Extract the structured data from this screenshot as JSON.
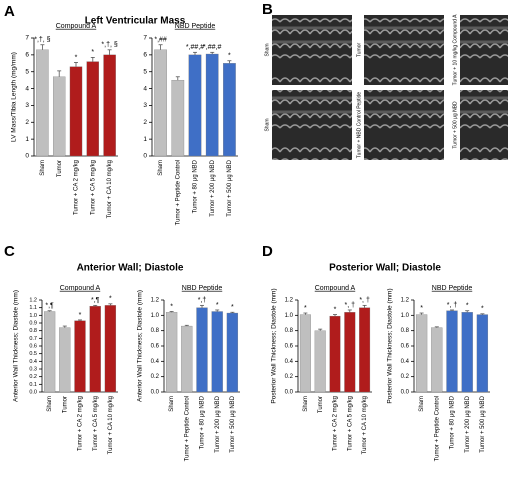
{
  "panels": [
    {
      "letter": "A",
      "title": "Left Ventricular Mass"
    },
    {
      "letter": "B"
    },
    {
      "letter": "C",
      "title": "Anterior Wall; Diastole"
    },
    {
      "letter": "D",
      "title": "Posterior Wall; Diastole"
    }
  ],
  "panel_b": {
    "labels": [
      "Sham",
      "Tumor",
      "Tumor + 10 mg/kg Compound A",
      "Sham",
      "Tumor + NBD Control Peptide",
      "Tumor + 500 μg NBD"
    ]
  },
  "chart_data": [
    {
      "type": "bar",
      "subtitle": "Compound A",
      "ylabel": "LV Mass/Tibia Length (mg/mm)",
      "categories": [
        "Sham",
        "Tumor",
        "Tumor + CA 2 mg/kg",
        "Tumor + CA 5 mg/kg",
        "Tumor + CA 10 mg/kg"
      ],
      "values": [
        6.3,
        4.7,
        5.3,
        5.6,
        6.0
      ],
      "errors": [
        0.3,
        0.35,
        0.25,
        0.25,
        0.3
      ],
      "colors": [
        "#bfbfbf",
        "#bfbfbf",
        "#b01c1c",
        "#b01c1c",
        "#b01c1c"
      ],
      "annotations": [
        "*,†, §",
        null,
        "*",
        "*",
        "*,†, §"
      ],
      "ylim": [
        0,
        7
      ],
      "yticks": [
        0,
        1,
        2,
        3,
        4,
        5,
        6,
        7
      ]
    },
    {
      "type": "bar",
      "subtitle": "NBD Peptide",
      "ylabel": "",
      "categories": [
        "Sham",
        "Tumor + Peptide Control",
        "Tumor + 80 μg NBD",
        "Tumor + 200 μg NBD",
        "Tumor + 500 μg NBD"
      ],
      "values": [
        6.3,
        4.5,
        6.0,
        6.05,
        5.5
      ],
      "errors": [
        0.3,
        0.2,
        0.15,
        0.1,
        0.15
      ],
      "colors": [
        "#bfbfbf",
        "#bfbfbf",
        "#3f6fc6",
        "#3f6fc6",
        "#3f6fc6"
      ],
      "annotations": [
        "*,##",
        null,
        "*,##,#",
        "*,##,#",
        "*"
      ],
      "ylim": [
        0,
        7
      ],
      "yticks": [
        0,
        1,
        2,
        3,
        4,
        5,
        6,
        7
      ]
    },
    {
      "type": "bar",
      "subtitle": "Compound A",
      "ylabel": "Anterior Wall Thickness; Diastole (mm)",
      "categories": [
        "Sham",
        "Tumor",
        "Tumor + CA 2 mg/kg",
        "Tumor + CA 5 mg/kg",
        "Tumor + CA 10 mg/kg"
      ],
      "values": [
        1.05,
        0.84,
        0.93,
        1.12,
        1.13
      ],
      "errors": [
        0.01,
        0.02,
        0.01,
        0.01,
        0.02
      ],
      "colors": [
        "#bfbfbf",
        "#bfbfbf",
        "#b01c1c",
        "#b01c1c",
        "#b01c1c"
      ],
      "annotations": [
        "*,¶",
        null,
        "*",
        "*,¶",
        "*"
      ],
      "ylim": [
        0,
        1.2
      ],
      "yticks": [
        {
          "value": 0,
          "label": "0.0"
        },
        {
          "value": 0.1,
          "label": "0.1"
        },
        {
          "value": 0.2,
          "label": "0.2"
        },
        {
          "value": 0.3,
          "label": "0.3"
        },
        {
          "value": 0.4,
          "label": "0.4"
        },
        {
          "value": 0.5,
          "label": "0.5"
        },
        {
          "value": 0.6,
          "label": "0.6"
        },
        {
          "value": 0.7,
          "label": "0.7"
        },
        {
          "value": 0.8,
          "label": "0.8"
        },
        {
          "value": 0.9,
          "label": "0.9"
        },
        {
          "value": 1,
          "label": "1.0"
        },
        {
          "value": 1.1,
          "label": "1.1"
        },
        {
          "value": 1.2,
          "label": "1.2"
        }
      ]
    },
    {
      "type": "bar",
      "subtitle": "NBD Peptide",
      "ylabel": "Anterior Wall Thickness; Diastole (mm)",
      "categories": [
        "Sham",
        "Tumor + Peptide Control",
        "Tumor + 80 μg NBD",
        "Tumor + 200 μg NBD",
        "Tumor + 500 μg NBD"
      ],
      "values": [
        1.04,
        0.86,
        1.1,
        1.05,
        1.03
      ],
      "errors": [
        0.01,
        0.01,
        0.03,
        0.02,
        0.01
      ],
      "colors": [
        "#bfbfbf",
        "#bfbfbf",
        "#3f6fc6",
        "#3f6fc6",
        "#3f6fc6"
      ],
      "annotations": [
        "*",
        null,
        "*,†",
        "*",
        "*"
      ],
      "ylim": [
        0,
        1.2
      ],
      "yticks": [
        {
          "value": 0,
          "label": "0.0"
        },
        {
          "value": 0.2,
          "label": "0.2"
        },
        {
          "value": 0.4,
          "label": "0.4"
        },
        {
          "value": 0.6,
          "label": "0.6"
        },
        {
          "value": 0.8,
          "label": "0.8"
        },
        {
          "value": 1,
          "label": "1.0"
        },
        {
          "value": 1.2,
          "label": "1.2"
        }
      ]
    },
    {
      "type": "bar",
      "subtitle": "Compound A",
      "ylabel": "Posterior Wall Thickness; Diastole (mm)",
      "categories": [
        "Sham",
        "Tumor",
        "Tumor + CA 2 mg/kg",
        "Tumor + CA 5 mg/kg",
        "Tumor + CA 10 mg/kg"
      ],
      "values": [
        1.01,
        0.8,
        0.99,
        1.04,
        1.1
      ],
      "errors": [
        0.02,
        0.02,
        0.02,
        0.03,
        0.03
      ],
      "colors": [
        "#bfbfbf",
        "#bfbfbf",
        "#b01c1c",
        "#b01c1c",
        "#b01c1c"
      ],
      "annotations": [
        "*",
        null,
        "*",
        "*, †",
        "*, †"
      ],
      "ylim": [
        0,
        1.2
      ],
      "yticks": [
        {
          "value": 0,
          "label": "0.0"
        },
        {
          "value": 0.2,
          "label": "0.2"
        },
        {
          "value": 0.4,
          "label": "0.4"
        },
        {
          "value": 0.6,
          "label": "0.6"
        },
        {
          "value": 0.8,
          "label": "0.8"
        },
        {
          "value": 1,
          "label": "1.0"
        },
        {
          "value": 1.2,
          "label": "1.2"
        }
      ]
    },
    {
      "type": "bar",
      "subtitle": "NBD Peptide",
      "ylabel": "Posterior Wall Thickness; Diastole (mm)",
      "categories": [
        "Sham",
        "Tumor + Peptide Control",
        "Tumor + 80 μg NBD",
        "Tumor + 200 μg NBD",
        "Tumor + 500 μg NBD"
      ],
      "values": [
        1.01,
        0.84,
        1.06,
        1.04,
        1.01
      ],
      "errors": [
        0.02,
        0.01,
        0.01,
        0.02,
        0.01
      ],
      "colors": [
        "#bfbfbf",
        "#bfbfbf",
        "#3f6fc6",
        "#3f6fc6",
        "#3f6fc6"
      ],
      "annotations": [
        "*",
        null,
        "*, †",
        "*",
        "*"
      ],
      "ylim": [
        0,
        1.2
      ],
      "yticks": [
        {
          "value": 0,
          "label": "0.0"
        },
        {
          "value": 0.2,
          "label": "0.2"
        },
        {
          "value": 0.4,
          "label": "0.4"
        },
        {
          "value": 0.6,
          "label": "0.6"
        },
        {
          "value": 0.8,
          "label": "0.8"
        },
        {
          "value": 1,
          "label": "1.0"
        },
        {
          "value": 1.2,
          "label": "1.2"
        }
      ]
    }
  ]
}
